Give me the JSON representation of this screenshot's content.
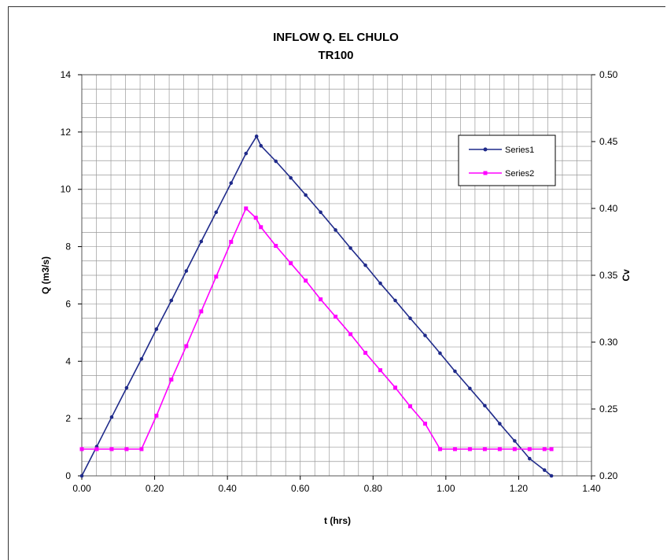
{
  "chart_data": {
    "type": "line",
    "title": "INFLOW Q. EL CHULO",
    "subtitle": "TR100",
    "xlabel": "t (hrs)",
    "ylabel": "Q (m3/s)",
    "y2label": "Cv",
    "xlim": [
      0,
      1.4
    ],
    "ylim": [
      0,
      14
    ],
    "y2lim": [
      0.2,
      0.5
    ],
    "x_ticks": [
      "0.00",
      "0.20",
      "0.40",
      "0.60",
      "0.80",
      "1.00",
      "1.20",
      "1.40"
    ],
    "y_ticks": [
      "0",
      "2",
      "4",
      "6",
      "8",
      "10",
      "12",
      "14"
    ],
    "y2_ticks": [
      "0.20",
      "0.25",
      "0.30",
      "0.35",
      "0.40",
      "0.45",
      "0.50"
    ],
    "grid": true,
    "legend_position": "top-right",
    "series": [
      {
        "name": "Series1",
        "axis": "left",
        "color": "#1f2a8a",
        "x": [
          0,
          0.041,
          0.082,
          0.123,
          0.164,
          0.205,
          0.246,
          0.287,
          0.328,
          0.369,
          0.41,
          0.451,
          0.48,
          0.492,
          0.533,
          0.574,
          0.615,
          0.656,
          0.697,
          0.738,
          0.779,
          0.82,
          0.861,
          0.902,
          0.943,
          0.984,
          1.025,
          1.066,
          1.107,
          1.148,
          1.189,
          1.23,
          1.271,
          1.29
        ],
        "y": [
          0,
          1.02,
          2.05,
          3.07,
          4.08,
          5.12,
          6.12,
          7.15,
          8.18,
          9.2,
          10.22,
          11.25,
          11.85,
          11.52,
          10.98,
          10.4,
          9.8,
          9.2,
          8.58,
          7.95,
          7.35,
          6.72,
          6.12,
          5.5,
          4.9,
          4.28,
          3.65,
          3.05,
          2.45,
          1.82,
          1.22,
          0.6,
          0.2,
          0
        ]
      },
      {
        "name": "Series2",
        "axis": "right",
        "color": "#ff00ff",
        "x": [
          0,
          0.041,
          0.082,
          0.123,
          0.164,
          0.205,
          0.246,
          0.287,
          0.328,
          0.369,
          0.41,
          0.451,
          0.478,
          0.492,
          0.533,
          0.574,
          0.615,
          0.656,
          0.697,
          0.738,
          0.779,
          0.82,
          0.861,
          0.902,
          0.943,
          0.984,
          1.025,
          1.066,
          1.107,
          1.148,
          1.189,
          1.23,
          1.271,
          1.29
        ],
        "y": [
          0.22,
          0.22,
          0.22,
          0.22,
          0.22,
          0.245,
          0.272,
          0.297,
          0.323,
          0.349,
          0.375,
          0.4,
          0.393,
          0.386,
          0.372,
          0.359,
          0.346,
          0.332,
          0.319,
          0.306,
          0.292,
          0.279,
          0.266,
          0.252,
          0.239,
          0.22,
          0.22,
          0.22,
          0.22,
          0.22,
          0.22,
          0.22,
          0.22,
          0.22
        ]
      }
    ]
  }
}
